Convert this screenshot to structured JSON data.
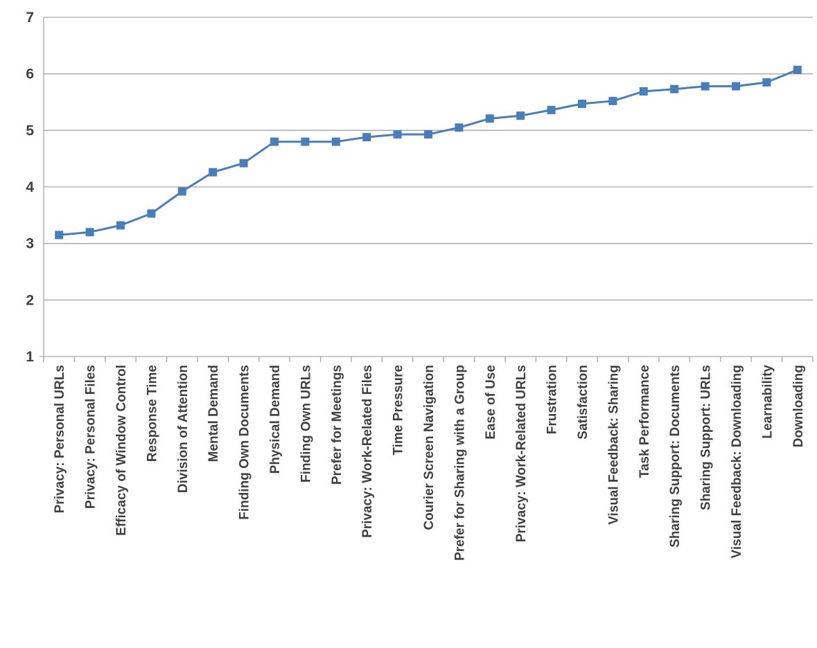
{
  "chart_data": {
    "type": "line",
    "title": "",
    "xlabel": "",
    "ylabel": "",
    "ylim": [
      1,
      7
    ],
    "yticks": [
      "1",
      "2",
      "3",
      "4",
      "5",
      "6",
      "7"
    ],
    "grid": true,
    "legend": "none",
    "categories": [
      "Privacy: Personal URLs",
      "Privacy: Personal Files",
      "Efficacy of Window Control",
      "Response Time",
      "Division of Attention",
      "Mental Demand",
      "Finding Own Documents",
      "Physical Demand",
      "Finding Own URLs",
      "Prefer for Meetings",
      "Privacy: Work-Related Files",
      "Time Pressure",
      "Courier Screen Navigation",
      "Prefer for Sharing with a Group",
      "Ease of Use",
      "Privacy: Work-Related URLs",
      "Frustration",
      "Satisfaction",
      "Visual Feedback: Sharing",
      "Task Performance",
      "Sharing Support: Documents",
      "Sharing Support: URLs",
      "Visual Feedback: Downloading",
      "Learnability",
      "Downloading"
    ],
    "series": [
      {
        "color": "#4a7ebb",
        "values": [
          3.15,
          3.2,
          3.32,
          3.53,
          3.92,
          4.26,
          4.42,
          4.8,
          4.8,
          4.8,
          4.88,
          4.93,
          4.93,
          5.05,
          5.21,
          5.26,
          5.36,
          5.47,
          5.52,
          5.69,
          5.73,
          5.78,
          5.78,
          5.85,
          6.07
        ]
      }
    ]
  }
}
